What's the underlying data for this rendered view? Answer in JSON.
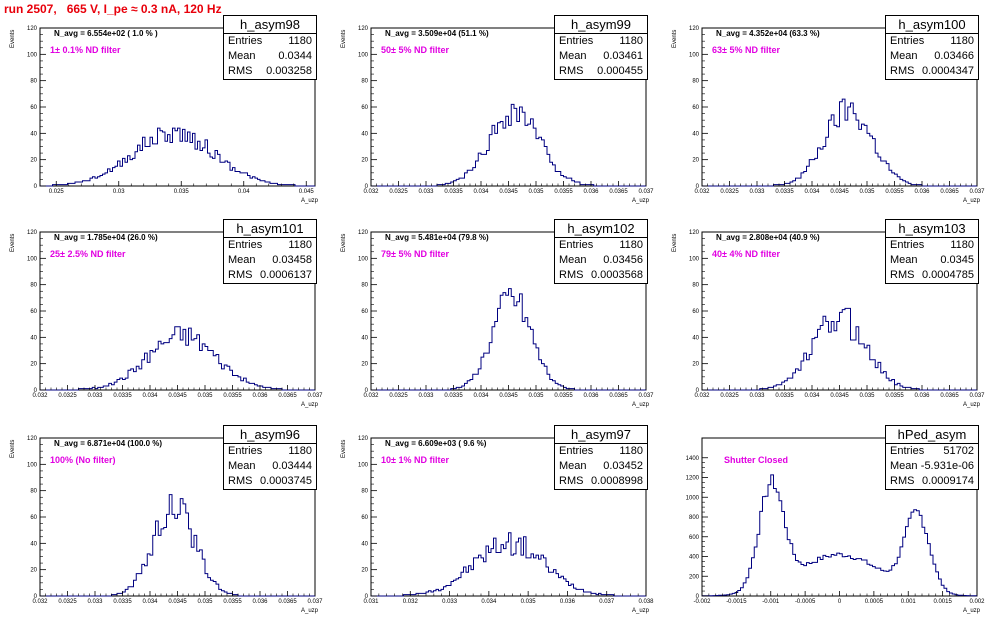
{
  "title": "run 2507,   665 V, I_pe ≈ 0.3 nA, 120 Hz",
  "colors": {
    "title": "#e8000b",
    "annotation": "#e100e1",
    "histogram": "#000080",
    "axis": "#000000"
  },
  "chart_data": [
    {
      "type": "histogram",
      "name": "h_asym98",
      "entries": "1180",
      "mean": "0.0344",
      "rms": "0.003258",
      "navg_label": "N_avg = 6.554e+02 ( 1.0 % )",
      "filter_label": "1± 0.1% ND filter",
      "xlabel": "A_uzp",
      "ylabel": "Events",
      "xlim": [
        0.0237,
        0.0457
      ],
      "ylim": [
        0,
        120
      ],
      "xticks": [
        0.025,
        0.03,
        0.035,
        0.04,
        0.045
      ],
      "xtick_labels": [
        "0.025",
        "0.03",
        "0.035",
        "0.04",
        "0.045"
      ],
      "yticks": [
        0,
        20,
        40,
        60,
        80,
        100,
        120
      ],
      "shape": [
        {
          "mu": 0.0344,
          "sigma": 0.0033,
          "peak": 40
        }
      ],
      "noise": 0.12,
      "seed": 98,
      "bins": 110
    },
    {
      "type": "histogram",
      "name": "h_asym99",
      "entries": "1180",
      "mean": "0.03461",
      "rms": "0.000455",
      "navg_label": "N_avg = 3.509e+04 (51.1 %)",
      "filter_label": "50± 5% ND filter",
      "xlabel": "A_uzp",
      "ylabel": "Events",
      "xlim": [
        0.032,
        0.037
      ],
      "ylim": [
        0,
        120
      ],
      "xticks": [
        0.032,
        0.0325,
        0.033,
        0.0335,
        0.034,
        0.0345,
        0.035,
        0.0355,
        0.036,
        0.0365,
        0.037
      ],
      "xtick_labels": [
        "0.032",
        "0.0325",
        "0.033",
        "0.0335",
        "0.034",
        "0.0345",
        "0.035",
        "0.0355",
        "0.036",
        "0.0365",
        "0.037"
      ],
      "yticks": [
        0,
        20,
        40,
        60,
        80,
        100,
        120
      ],
      "shape": [
        {
          "mu": 0.03461,
          "sigma": 0.000455,
          "peak": 57
        }
      ],
      "noise": 0.12,
      "seed": 99,
      "bins": 100
    },
    {
      "type": "histogram",
      "name": "h_asym100",
      "entries": "1180",
      "mean": "0.03466",
      "rms": "0.0004347",
      "navg_label": "N_avg = 4.352e+04 (63.3 %)",
      "filter_label": "63± 5% ND filter",
      "xlabel": "A_uzp",
      "ylabel": "Events",
      "xlim": [
        0.032,
        0.037
      ],
      "ylim": [
        0,
        120
      ],
      "xticks": [
        0.032,
        0.0325,
        0.033,
        0.0335,
        0.034,
        0.0345,
        0.035,
        0.0355,
        0.036,
        0.0365,
        0.037
      ],
      "xtick_labels": [
        "0.032",
        "0.0325",
        "0.033",
        "0.0335",
        "0.034",
        "0.0345",
        "0.035",
        "0.0355",
        "0.036",
        "0.0365",
        "0.037"
      ],
      "yticks": [
        0,
        20,
        40,
        60,
        80,
        100,
        120
      ],
      "shape": [
        {
          "mu": 0.03466,
          "sigma": 0.000435,
          "peak": 57
        }
      ],
      "noise": 0.12,
      "seed": 100,
      "bins": 100
    },
    {
      "type": "histogram",
      "name": "h_asym101",
      "entries": "1180",
      "mean": "0.03458",
      "rms": "0.0006137",
      "navg_label": "N_avg = 1.785e+04 (26.0 %)",
      "filter_label": "25± 2.5% ND filter",
      "xlabel": "A_uzp",
      "ylabel": "Events",
      "xlim": [
        0.032,
        0.037
      ],
      "ylim": [
        0,
        120
      ],
      "xticks": [
        0.032,
        0.0325,
        0.033,
        0.0335,
        0.034,
        0.0345,
        0.035,
        0.0355,
        0.036,
        0.0365,
        0.037
      ],
      "xtick_labels": [
        "0.032",
        "0.0325",
        "0.033",
        "0.0335",
        "0.034",
        "0.0345",
        "0.035",
        "0.0355",
        "0.036",
        "0.0365",
        "0.037"
      ],
      "yticks": [
        0,
        20,
        40,
        60,
        80,
        100,
        120
      ],
      "shape": [
        {
          "mu": 0.03458,
          "sigma": 0.000614,
          "peak": 42
        }
      ],
      "noise": 0.13,
      "seed": 101,
      "bins": 100
    },
    {
      "type": "histogram",
      "name": "h_asym102",
      "entries": "1180",
      "mean": "0.03456",
      "rms": "0.0003568",
      "navg_label": "N_avg = 5.481e+04 (79.8 %)",
      "filter_label": "79± 5% ND filter",
      "xlabel": "A_uzp",
      "ylabel": "Events",
      "xlim": [
        0.032,
        0.037
      ],
      "ylim": [
        0,
        120
      ],
      "xticks": [
        0.032,
        0.0325,
        0.033,
        0.0335,
        0.034,
        0.0345,
        0.035,
        0.0355,
        0.036,
        0.0365,
        0.037
      ],
      "xtick_labels": [
        "0.032",
        "0.0325",
        "0.033",
        "0.0335",
        "0.034",
        "0.0345",
        "0.035",
        "0.0355",
        "0.036",
        "0.0365",
        "0.037"
      ],
      "yticks": [
        0,
        20,
        40,
        60,
        80,
        100,
        120
      ],
      "shape": [
        {
          "mu": 0.03456,
          "sigma": 0.000357,
          "peak": 70
        }
      ],
      "noise": 0.12,
      "seed": 102,
      "bins": 100
    },
    {
      "type": "histogram",
      "name": "h_asym103",
      "entries": "1180",
      "mean": "0.0345",
      "rms": "0.0004785",
      "navg_label": "N_avg = 2.808e+04 (40.9 %)",
      "filter_label": "40± 4% ND filter",
      "xlabel": "A_uzp",
      "ylabel": "Events",
      "xlim": [
        0.032,
        0.037
      ],
      "ylim": [
        0,
        120
      ],
      "xticks": [
        0.032,
        0.0325,
        0.033,
        0.0335,
        0.034,
        0.0345,
        0.035,
        0.0355,
        0.036,
        0.0365,
        0.037
      ],
      "xtick_labels": [
        "0.032",
        "0.0325",
        "0.033",
        "0.0335",
        "0.034",
        "0.0345",
        "0.035",
        "0.0355",
        "0.036",
        "0.0365",
        "0.037"
      ],
      "yticks": [
        0,
        20,
        40,
        60,
        80,
        100,
        120
      ],
      "shape": [
        {
          "mu": 0.0345,
          "sigma": 0.000479,
          "peak": 55
        }
      ],
      "noise": 0.14,
      "seed": 103,
      "bins": 100
    },
    {
      "type": "histogram",
      "name": "h_asym96",
      "entries": "1180",
      "mean": "0.03444",
      "rms": "0.0003745",
      "navg_label": "N_avg = 6.871e+04 (100.0 %)",
      "filter_label": "100% (No filter)",
      "xlabel": "A_uzp",
      "ylabel": "Events",
      "xlim": [
        0.032,
        0.037
      ],
      "ylim": [
        0,
        120
      ],
      "xticks": [
        0.032,
        0.0325,
        0.033,
        0.0335,
        0.034,
        0.0345,
        0.035,
        0.0355,
        0.036,
        0.0365,
        0.037
      ],
      "xtick_labels": [
        "0.032",
        "0.0325",
        "0.033",
        "0.0335",
        "0.034",
        "0.0345",
        "0.035",
        "0.0355",
        "0.036",
        "0.0365",
        "0.037"
      ],
      "yticks": [
        0,
        20,
        40,
        60,
        80,
        100,
        120
      ],
      "shape": [
        {
          "mu": 0.03444,
          "sigma": 0.000375,
          "peak": 68
        }
      ],
      "noise": 0.12,
      "seed": 96,
      "bins": 100
    },
    {
      "type": "histogram",
      "name": "h_asym97",
      "entries": "1180",
      "mean": "0.03452",
      "rms": "0.0008998",
      "navg_label": "N_avg = 6.609e+03 ( 9.6 %)",
      "filter_label": "10± 1% ND filter",
      "xlabel": "A_uzp",
      "ylabel": "Events",
      "xlim": [
        0.031,
        0.038
      ],
      "ylim": [
        0,
        120
      ],
      "xticks": [
        0.031,
        0.032,
        0.033,
        0.034,
        0.035,
        0.036,
        0.037,
        0.038
      ],
      "xtick_labels": [
        "0.031",
        "0.032",
        "0.033",
        "0.034",
        "0.035",
        "0.036",
        "0.037",
        "0.038"
      ],
      "yticks": [
        0,
        20,
        40,
        60,
        80,
        100,
        120
      ],
      "shape": [
        {
          "mu": 0.03452,
          "sigma": 0.0009,
          "peak": 40
        }
      ],
      "noise": 0.15,
      "seed": 97,
      "bins": 110
    },
    {
      "type": "histogram",
      "name": "hPed_asym",
      "entries": "51702",
      "mean": "-5.931e-06",
      "rms": "0.0009174",
      "navg_label": "",
      "filter_label": "Shutter Closed",
      "xlabel": "A_uzp",
      "ylabel": "",
      "xlim": [
        -0.002,
        0.002
      ],
      "ylim": [
        0,
        1600
      ],
      "xticks": [
        -0.002,
        -0.0015,
        -0.001,
        -0.0005,
        0,
        0.0005,
        0.001,
        0.0015,
        0.002
      ],
      "xtick_labels": [
        "-0.002",
        "-0.0015",
        "-0.001",
        "-0.0005",
        "0",
        "0.0005",
        "0.001",
        "0.0015",
        "0.002"
      ],
      "yticks": [
        0,
        200,
        400,
        600,
        800,
        1000,
        1200,
        1400
      ],
      "shape": [
        {
          "mu": -0.00099,
          "sigma": 0.00018,
          "peak": 1050
        },
        {
          "mu": 0.00113,
          "sigma": 0.00018,
          "peak": 780
        },
        {
          "mu": 0.0,
          "sigma": 0.0006,
          "peak": 420
        }
      ],
      "noise": 0.04,
      "seed": 7,
      "bins": 100
    }
  ]
}
